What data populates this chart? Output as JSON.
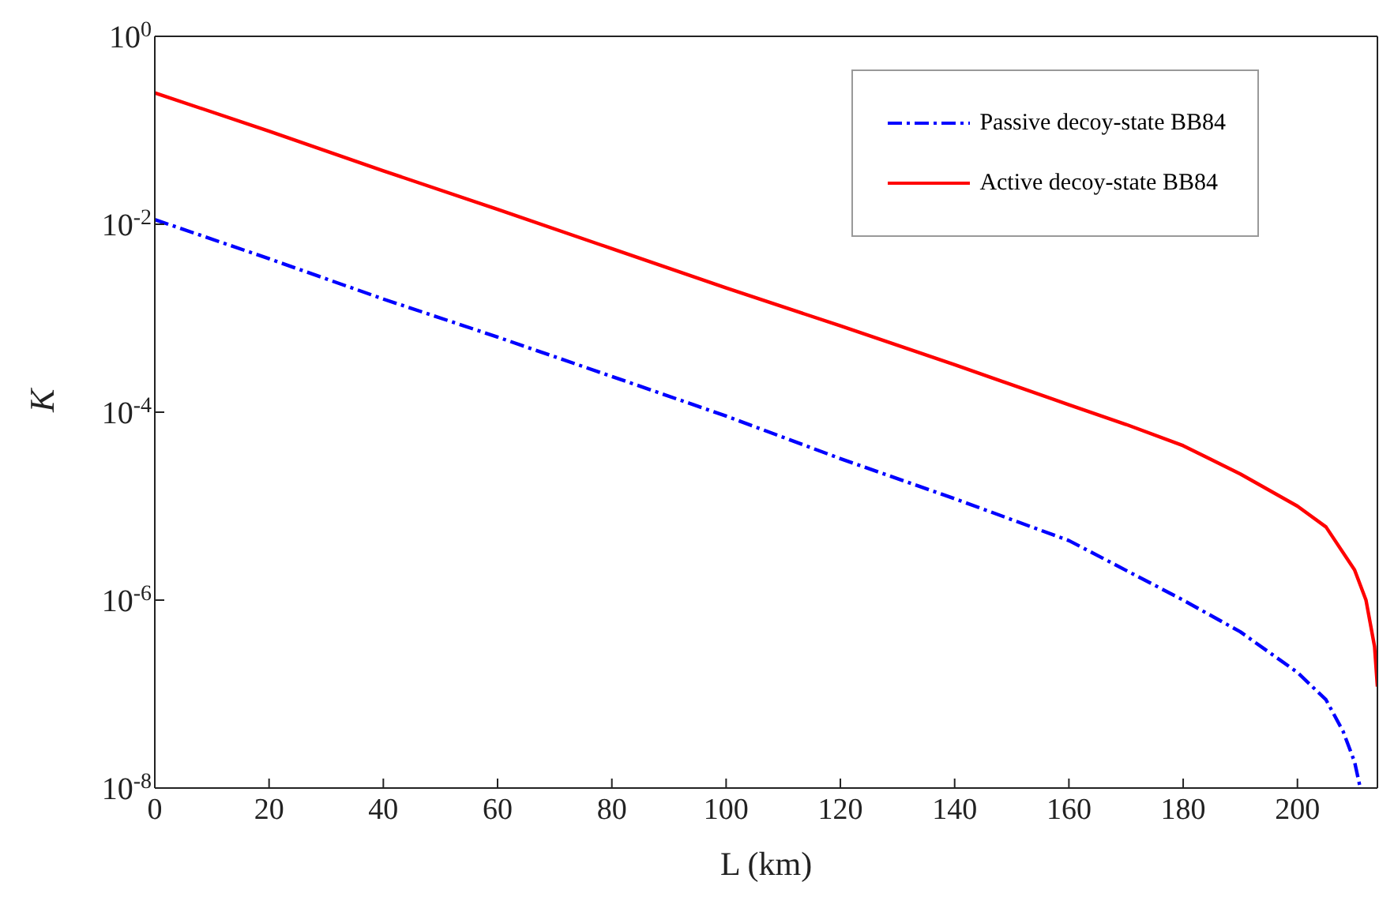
{
  "chart_data": {
    "type": "line",
    "xlabel": "L (km)",
    "ylabel": "K",
    "log": "y",
    "grid": false,
    "legend": "top right",
    "marker": "none",
    "xlim": [
      0,
      214
    ],
    "xticks": [
      0,
      20,
      40,
      60,
      80,
      100,
      120,
      140,
      160,
      180,
      200
    ],
    "ylim": [
      1e-08,
      1
    ],
    "yticks": [
      {
        "value": 1e-08,
        "label": "10$^{-8}$"
      },
      {
        "value": 1e-06,
        "label": "10$^{-6}$"
      },
      {
        "value": 0.0001,
        "label": "10$^{-4}$"
      },
      {
        "value": 0.01,
        "label": "10$^{-2}$"
      },
      {
        "value": 1,
        "label": "10$^{0}$"
      }
    ],
    "series": [
      {
        "name": "Passive decoy-state BB84",
        "color": "#0000ff",
        "line_style": "dashed",
        "x": [
          0,
          20,
          40,
          60,
          80,
          100,
          120,
          140,
          160,
          180,
          190,
          200,
          205,
          208,
          210,
          211
        ],
        "values": [
          0.0112,
          0.0043,
          0.0016,
          0.00063,
          0.00024,
          9.1e-05,
          3.2e-05,
          1.2e-05,
          4.3e-06,
          1e-06,
          4.6e-07,
          1.7e-07,
          8.7e-08,
          4e-08,
          1.9e-08,
          1e-08
        ]
      },
      {
        "name": "Active decoy-state BB84",
        "color": "#ff0000",
        "line_style": "solid",
        "x": [
          0,
          20,
          40,
          60,
          80,
          100,
          120,
          140,
          160,
          170,
          180,
          190,
          200,
          205,
          210,
          212,
          213.5,
          214
        ],
        "values": [
          0.25,
          0.098,
          0.037,
          0.0144,
          0.0055,
          0.0021,
          0.00083,
          0.00032,
          0.00012,
          7.4e-05,
          4.4e-05,
          2.2e-05,
          1e-05,
          6e-06,
          2.1e-06,
          1e-06,
          3.2e-07,
          1.2e-07
        ]
      }
    ]
  }
}
